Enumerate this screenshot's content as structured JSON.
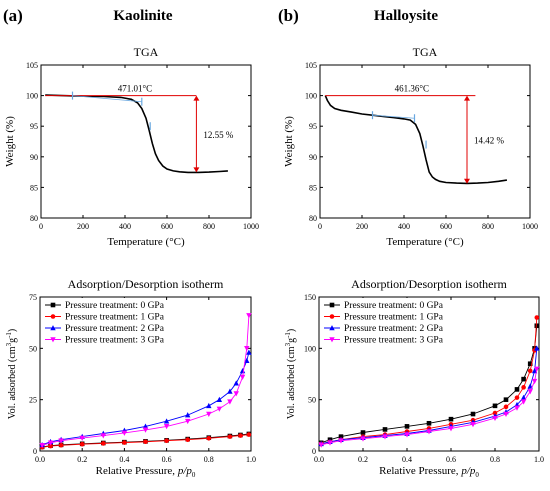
{
  "panels": {
    "a": {
      "tag": "(a)",
      "mineral": "Kaolinite"
    },
    "b": {
      "tag": "(b)",
      "mineral": "Halloysite"
    }
  },
  "chart_data": [
    {
      "id": "tga-a",
      "type": "line",
      "title": "TGA",
      "xlabel": "Temperature (°C)",
      "ylabel": "Weight (%)",
      "xlim": [
        0,
        1000
      ],
      "ylim": [
        80,
        105
      ],
      "xticks": [
        0,
        200,
        400,
        600,
        800,
        1000
      ],
      "yticks": [
        80,
        85,
        90,
        95,
        100,
        105
      ],
      "series": [
        {
          "color": "#000000",
          "x": [
            20,
            100,
            200,
            300,
            380,
            430,
            460,
            480,
            500,
            515,
            530,
            545,
            560,
            580,
            600,
            630,
            660,
            700,
            750,
            800,
            850,
            890
          ],
          "y": [
            100.1,
            100.0,
            99.9,
            99.85,
            99.7,
            99.4,
            98.8,
            97.9,
            96.3,
            94.3,
            92.2,
            90.5,
            89.4,
            88.5,
            88.0,
            87.7,
            87.55,
            87.45,
            87.45,
            87.5,
            87.6,
            87.7
          ]
        }
      ],
      "annotations": {
        "onset_label": "471.01°C",
        "onset_x": 471,
        "baseline_y": 100,
        "baseline_x": [
          20,
          740
        ],
        "drop_label": "12.55 %",
        "drop_x": 740,
        "drop_y": [
          100,
          87.45
        ],
        "ticks": [
          [
            150,
            100
          ],
          [
            480,
            99
          ],
          [
            520,
            95
          ]
        ]
      }
    },
    {
      "id": "tga-b",
      "type": "line",
      "title": "TGA",
      "xlabel": "Temperature (°C)",
      "ylabel": "Weight (%)",
      "xlim": [
        0,
        1000
      ],
      "ylim": [
        80,
        105
      ],
      "xticks": [
        0,
        200,
        400,
        600,
        800,
        1000
      ],
      "yticks": [
        80,
        85,
        90,
        95,
        100,
        105
      ],
      "series": [
        {
          "color": "#000000",
          "x": [
            25,
            35,
            50,
            70,
            100,
            150,
            200,
            250,
            300,
            350,
            400,
            430,
            455,
            475,
            490,
            505,
            520,
            535,
            550,
            570,
            600,
            650,
            700,
            750,
            800,
            850,
            890
          ],
          "y": [
            100,
            99.2,
            98.4,
            97.9,
            97.6,
            97.3,
            97.0,
            96.8,
            96.6,
            96.4,
            96.2,
            96.0,
            95.3,
            93.8,
            91.8,
            89.5,
            87.5,
            86.7,
            86.3,
            86.0,
            85.8,
            85.7,
            85.65,
            85.7,
            85.8,
            86.0,
            86.2
          ]
        }
      ],
      "annotations": {
        "onset_label": "461.36°C",
        "onset_x": 461,
        "baseline_y": 100,
        "baseline_x": [
          25,
          740
        ],
        "drop_label": "14.42 %",
        "drop_x": 700,
        "drop_y": [
          100,
          85.6
        ],
        "ticks": [
          [
            250,
            96.8
          ],
          [
            450,
            96.3
          ],
          [
            505,
            92
          ]
        ]
      }
    },
    {
      "id": "iso-a",
      "type": "line",
      "title": "Adsorption/Desorption isotherm",
      "xlabel": "Relative Pressure, p/p0",
      "ylabel": "Vol. adsorbed (cm3g-1)",
      "xlim": [
        0,
        1.0
      ],
      "ylim": [
        0,
        75
      ],
      "xticks": [
        0.0,
        0.2,
        0.4,
        0.6,
        0.8,
        1.0
      ],
      "yticks": [
        0,
        25,
        50,
        75
      ],
      "legend_position": "top-left",
      "series": [
        {
          "name": "Pressure treatment: 0 GPa",
          "color": "#000000",
          "marker": "square",
          "x": [
            0.01,
            0.05,
            0.1,
            0.2,
            0.3,
            0.4,
            0.5,
            0.6,
            0.7,
            0.8,
            0.9,
            0.95,
            0.99
          ],
          "y": [
            2.0,
            2.6,
            3.0,
            3.5,
            3.9,
            4.3,
            4.7,
            5.2,
            5.8,
            6.5,
            7.3,
            7.8,
            8.3
          ]
        },
        {
          "name": "Pressure treatment: 1 GPa",
          "color": "#ff0000",
          "marker": "circle",
          "x": [
            0.01,
            0.05,
            0.1,
            0.2,
            0.3,
            0.4,
            0.5,
            0.6,
            0.7,
            0.8,
            0.9,
            0.95,
            0.99
          ],
          "y": [
            1.8,
            2.4,
            2.8,
            3.3,
            3.7,
            4.1,
            4.5,
            5.0,
            5.5,
            6.2,
            7.0,
            7.5,
            8.0
          ]
        },
        {
          "name": "Pressure treatment: 2 GPa",
          "color": "#0000ff",
          "marker": "triangle-up",
          "x": [
            0.01,
            0.05,
            0.1,
            0.2,
            0.3,
            0.4,
            0.5,
            0.6,
            0.7,
            0.8,
            0.85,
            0.9,
            0.93,
            0.96,
            0.98,
            0.99
          ],
          "y": [
            3.0,
            4.5,
            5.5,
            7.0,
            8.5,
            10.0,
            12.0,
            14.5,
            17.5,
            22.0,
            25.0,
            29.0,
            33.0,
            39.0,
            44.0,
            48.0
          ]
        },
        {
          "name": "Pressure treatment: 3 GPa",
          "color": "#ff00ff",
          "marker": "triangle-down",
          "x": [
            0.01,
            0.05,
            0.1,
            0.2,
            0.3,
            0.4,
            0.5,
            0.6,
            0.7,
            0.8,
            0.85,
            0.9,
            0.93,
            0.96,
            0.98,
            0.99
          ],
          "y": [
            2.8,
            4.0,
            5.0,
            6.3,
            7.5,
            8.8,
            10.3,
            12.0,
            14.5,
            18.0,
            20.5,
            24.0,
            28.0,
            36.0,
            50.0,
            66.0
          ]
        }
      ]
    },
    {
      "id": "iso-b",
      "type": "line",
      "title": "Adsorption/Desorption isotherm",
      "xlabel": "Relative Pressure, p/p0",
      "ylabel": "Vol. adsorbed (cm3g-1)",
      "xlim": [
        0,
        1.0
      ],
      "ylim": [
        0,
        150
      ],
      "xticks": [
        0.0,
        0.2,
        0.4,
        0.6,
        0.8,
        1.0
      ],
      "yticks": [
        0,
        50,
        100,
        150
      ],
      "legend_position": "top-left",
      "series": [
        {
          "name": "Pressure treatment: 0 GPa",
          "color": "#000000",
          "marker": "square",
          "x": [
            0.01,
            0.05,
            0.1,
            0.2,
            0.3,
            0.4,
            0.5,
            0.6,
            0.7,
            0.8,
            0.85,
            0.9,
            0.93,
            0.96,
            0.98,
            0.99
          ],
          "y": [
            8,
            11,
            14,
            18,
            21,
            24,
            27,
            31,
            36,
            44,
            50,
            60,
            70,
            85,
            100,
            122
          ]
        },
        {
          "name": "Pressure treatment: 1 GPa",
          "color": "#ff0000",
          "marker": "circle",
          "x": [
            0.01,
            0.05,
            0.1,
            0.2,
            0.3,
            0.4,
            0.5,
            0.6,
            0.7,
            0.8,
            0.85,
            0.9,
            0.93,
            0.96,
            0.98,
            0.99
          ],
          "y": [
            7,
            9,
            11,
            14,
            16,
            19,
            22,
            26,
            30,
            37,
            43,
            52,
            62,
            78,
            98,
            130
          ]
        },
        {
          "name": "Pressure treatment: 2 GPa",
          "color": "#0000ff",
          "marker": "triangle-up",
          "x": [
            0.01,
            0.05,
            0.1,
            0.2,
            0.3,
            0.4,
            0.5,
            0.6,
            0.7,
            0.8,
            0.85,
            0.9,
            0.93,
            0.96,
            0.98,
            0.99
          ],
          "y": [
            7,
            9,
            11,
            13,
            15,
            17,
            20,
            24,
            28,
            34,
            38,
            45,
            52,
            63,
            78,
            100
          ]
        },
        {
          "name": "Pressure treatment: 3 GPa",
          "color": "#ff00ff",
          "marker": "triangle-down",
          "x": [
            0.01,
            0.05,
            0.1,
            0.2,
            0.3,
            0.4,
            0.5,
            0.6,
            0.7,
            0.8,
            0.85,
            0.9,
            0.93,
            0.96,
            0.98,
            0.99
          ],
          "y": [
            6,
            8,
            10,
            12,
            14,
            16,
            19,
            22,
            26,
            32,
            36,
            42,
            48,
            58,
            68,
            80
          ]
        }
      ]
    }
  ]
}
